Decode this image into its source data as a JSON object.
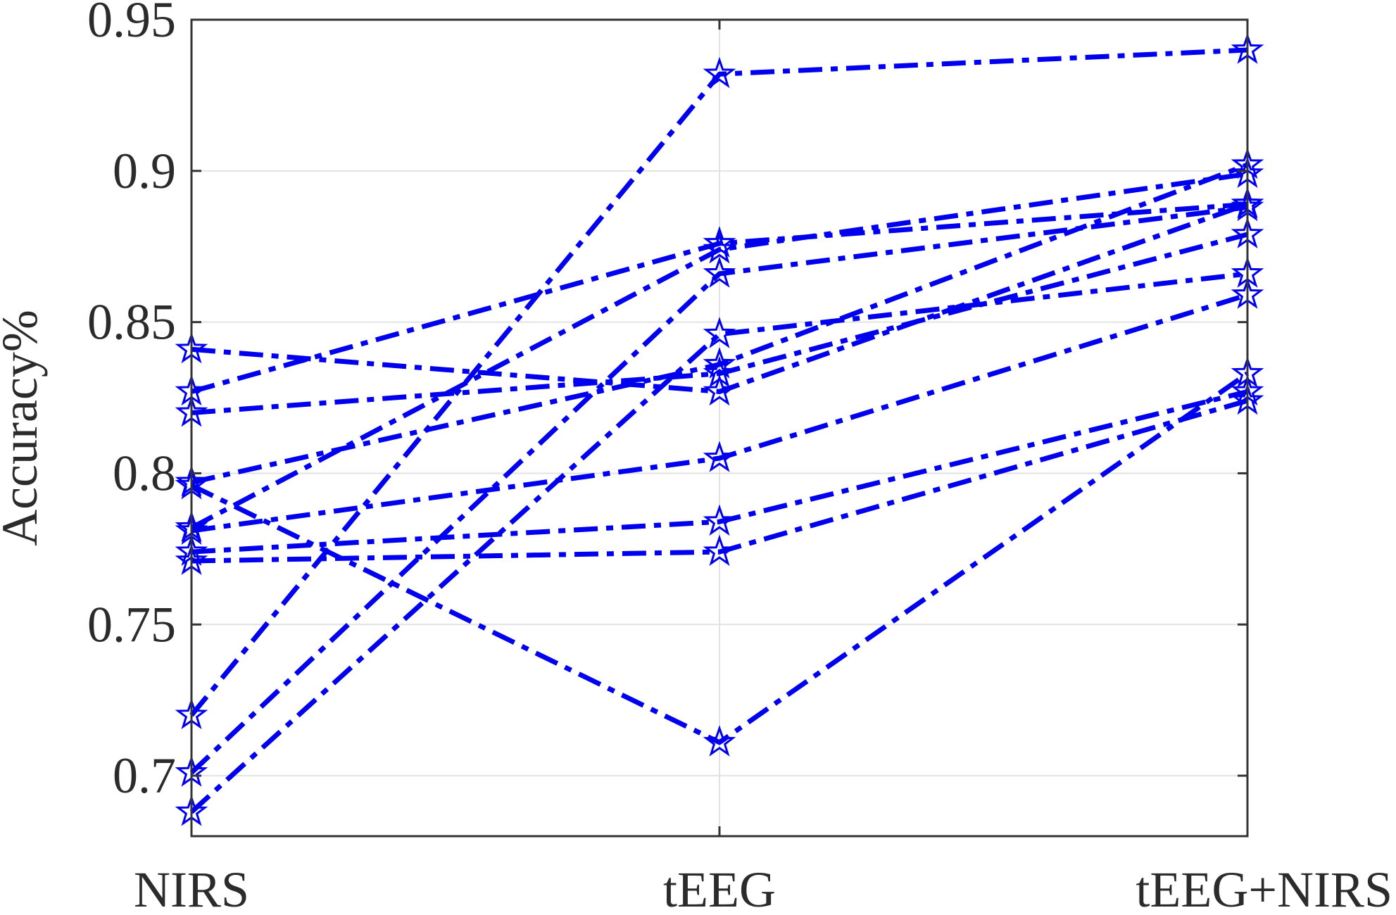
{
  "chart_data": {
    "type": "line",
    "categories": [
      "NIRS",
      "tEEG",
      "tEEG+NIRS"
    ],
    "ylabel": "Accuracy%",
    "ylim": [
      0.68,
      0.95
    ],
    "yticks": [
      0.7,
      0.75,
      0.8,
      0.85,
      0.9,
      0.95
    ],
    "ytick_labels": [
      "0.7",
      "0.75",
      "0.8",
      "0.85",
      "0.9",
      "0.95"
    ],
    "grid": true,
    "line_color": "#0000ee",
    "line_style": "dash-dot",
    "marker": "pentagram",
    "series": [
      {
        "values": [
          0.72,
          0.932,
          0.94
        ]
      },
      {
        "values": [
          0.841,
          0.827,
          0.889
        ]
      },
      {
        "values": [
          0.827,
          0.876,
          0.889
        ]
      },
      {
        "values": [
          0.82,
          0.833,
          0.879
        ]
      },
      {
        "values": [
          0.797,
          0.836,
          0.902
        ]
      },
      {
        "values": [
          0.796,
          0.711,
          0.833
        ]
      },
      {
        "values": [
          0.782,
          0.874,
          0.899
        ]
      },
      {
        "values": [
          0.781,
          0.805,
          0.859
        ]
      },
      {
        "values": [
          0.774,
          0.784,
          0.827
        ]
      },
      {
        "values": [
          0.771,
          0.774,
          0.824
        ]
      },
      {
        "values": [
          0.701,
          0.866,
          0.888
        ]
      },
      {
        "values": [
          0.688,
          0.846,
          0.866
        ]
      }
    ]
  }
}
